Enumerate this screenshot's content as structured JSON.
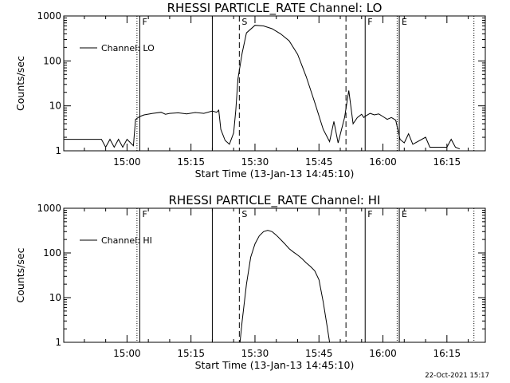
{
  "chart_data": [
    {
      "type": "line",
      "title": "RHESSI PARTICLE_RATE Channel: LO",
      "xlabel": "Start Time (13-Jan-13 14:45:10)",
      "ylabel": "Counts/sec",
      "xlim": [
        "14:45:10",
        "16:24:00"
      ],
      "ylim": [
        1,
        1000
      ],
      "yscale": "log",
      "x_ticks": [
        "15:00",
        "15:15",
        "15:30",
        "15:45",
        "16:00",
        "16:15"
      ],
      "y_ticks": [
        "1",
        "10",
        "100",
        "1000"
      ],
      "legend": "top-left",
      "series": [
        {
          "name": "Channel: LO",
          "x": [
            "14:45:10",
            "14:54:00",
            "14:55:00",
            "14:56:00",
            "14:57:00",
            "14:58:00",
            "14:59:00",
            "15:00:00",
            "15:01:30",
            "15:02:00",
            "15:03:00",
            "15:04:00",
            "15:06:00",
            "15:08:00",
            "15:09:00",
            "15:10:00",
            "15:12:00",
            "15:14:00",
            "15:16:00",
            "15:18:00",
            "15:20:00",
            "15:21:00",
            "15:21:30",
            "15:22:00",
            "15:23:00",
            "15:24:00",
            "15:25:00",
            "15:25:30",
            "15:26:00",
            "15:27:00",
            "15:28:00",
            "15:30:00",
            "15:32:00",
            "15:34:00",
            "15:36:00",
            "15:38:00",
            "15:40:00",
            "15:42:00",
            "15:44:00",
            "15:46:00",
            "15:47:30",
            "15:48:30",
            "15:49:30",
            "15:51:00",
            "15:52:00",
            "15:53:00",
            "15:54:00",
            "15:55:00",
            "15:55:30",
            "15:56:00",
            "15:57:00",
            "15:58:00",
            "15:59:00",
            "16:00:00",
            "16:01:00",
            "16:02:00",
            "16:03:00",
            "16:04:00",
            "16:05:00",
            "16:06:00",
            "16:07:00",
            "16:10:00",
            "16:11:00",
            "16:15:00",
            "16:16:00",
            "16:17:00",
            "16:18:00"
          ],
          "y": [
            1.8,
            1.8,
            1.2,
            1.8,
            1.2,
            1.8,
            1.2,
            1.8,
            1.3,
            5,
            5.8,
            6.3,
            6.8,
            7.2,
            6.5,
            6.8,
            7,
            6.6,
            7.1,
            6.8,
            7.7,
            7.2,
            8,
            3,
            1.7,
            1.4,
            2.5,
            8,
            40,
            150,
            420,
            620,
            600,
            520,
            400,
            280,
            140,
            45,
            12,
            3,
            1.6,
            4.5,
            1.5,
            5.5,
            22,
            4,
            5.5,
            6.5,
            5.5,
            6,
            6.8,
            6.3,
            6.6,
            5.8,
            5,
            5.5,
            4.8,
            1.8,
            1.5,
            2.4,
            1.4,
            2,
            1.2,
            1.2,
            1.8,
            1.2,
            1.1
          ]
        }
      ],
      "vlines": [
        {
          "time": "15:02:20",
          "style": "dotted",
          "flag": ""
        },
        {
          "time": "15:03:00",
          "style": "solid",
          "flag": "F"
        },
        {
          "time": "15:20:00",
          "style": "solid",
          "flag": ""
        },
        {
          "time": "15:26:20",
          "style": "dashed",
          "flag": "S"
        },
        {
          "time": "15:51:20",
          "style": "dashed",
          "flag": ""
        },
        {
          "time": "15:55:50",
          "style": "solid",
          "flag": "F"
        },
        {
          "time": "16:03:20",
          "style": "dotted",
          "flag": ""
        },
        {
          "time": "16:03:50",
          "style": "solid",
          "flag": "E"
        },
        {
          "time": "16:21:20",
          "style": "dotted",
          "flag": ""
        }
      ]
    },
    {
      "type": "line",
      "title": "RHESSI PARTICLE_RATE Channel: HI",
      "xlabel": "Start Time (13-Jan-13 14:45:10)",
      "ylabel": "Counts/sec",
      "xlim": [
        "14:45:10",
        "16:24:00"
      ],
      "ylim": [
        1,
        1000
      ],
      "yscale": "log",
      "x_ticks": [
        "15:00",
        "15:15",
        "15:30",
        "15:45",
        "16:00",
        "16:15"
      ],
      "y_ticks": [
        "1",
        "10",
        "100",
        "1000"
      ],
      "legend": "top-left",
      "series": [
        {
          "name": "Channel: HI",
          "x": [
            "15:26:30",
            "15:27:00",
            "15:28:00",
            "15:29:00",
            "15:30:00",
            "15:31:00",
            "15:32:00",
            "15:33:00",
            "15:34:00",
            "15:35:00",
            "15:36:00",
            "15:37:00",
            "15:38:00",
            "15:39:00",
            "15:40:00",
            "15:41:00",
            "15:42:00",
            "15:43:00",
            "15:44:00",
            "15:45:00",
            "15:46:00",
            "15:47:00",
            "15:47:30"
          ],
          "y": [
            1,
            3,
            20,
            80,
            160,
            240,
            300,
            320,
            300,
            250,
            200,
            160,
            125,
            105,
            90,
            75,
            60,
            50,
            40,
            25,
            8,
            2,
            1
          ]
        }
      ],
      "vlines": [
        {
          "time": "15:02:20",
          "style": "dotted",
          "flag": ""
        },
        {
          "time": "15:03:00",
          "style": "solid",
          "flag": "F"
        },
        {
          "time": "15:20:00",
          "style": "solid",
          "flag": ""
        },
        {
          "time": "15:26:20",
          "style": "dashed",
          "flag": "S"
        },
        {
          "time": "15:51:20",
          "style": "dashed",
          "flag": ""
        },
        {
          "time": "15:55:50",
          "style": "solid",
          "flag": "F"
        },
        {
          "time": "16:03:20",
          "style": "dotted",
          "flag": ""
        },
        {
          "time": "16:03:50",
          "style": "solid",
          "flag": "E"
        },
        {
          "time": "16:21:20",
          "style": "dotted",
          "flag": ""
        }
      ]
    }
  ],
  "footer": {
    "timestamp": "22-Oct-2021 15:17"
  }
}
